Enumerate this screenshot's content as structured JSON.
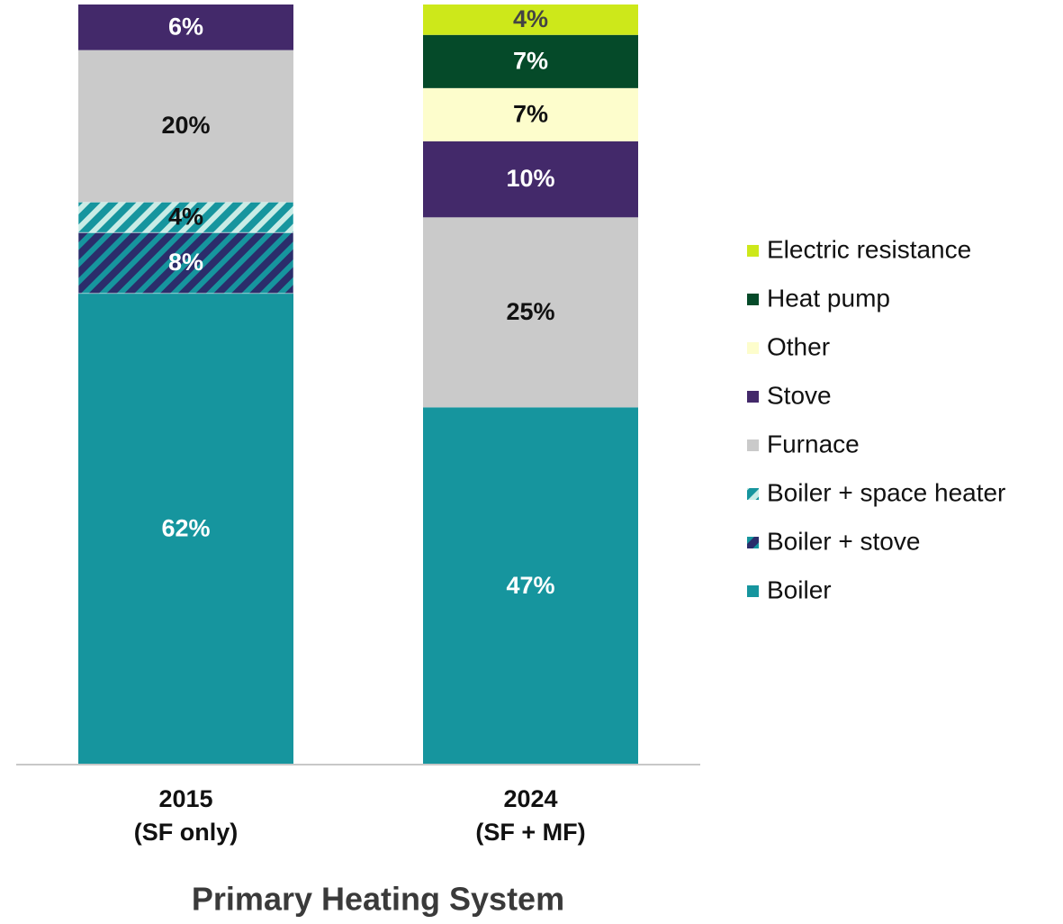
{
  "chart_data": {
    "type": "stacked_bar",
    "x_label": "Primary Heating System",
    "categories": [
      "2015\n(SF only)",
      "2024\n(SF + MF)"
    ],
    "ylim": [
      0,
      100
    ],
    "legend": "right",
    "series": [
      {
        "name": "Boiler",
        "color": "#16959e",
        "label_color": "#ffffff",
        "values": [
          62,
          47
        ],
        "value_labels": [
          "62%",
          "47%"
        ]
      },
      {
        "name": "Boiler + stove",
        "color": "#22557a",
        "hatch": [
          "#2b2d6b",
          "#16959e"
        ],
        "label_color": "#ffffff",
        "values": [
          8,
          null
        ],
        "value_labels": [
          "8%",
          null
        ]
      },
      {
        "name": "Boiler + space heater",
        "color": "#5cb8b5",
        "hatch": [
          "#16959e",
          "#c9ece6"
        ],
        "label_color": "#111111",
        "values": [
          4,
          null
        ],
        "value_labels": [
          "4%",
          null
        ]
      },
      {
        "name": "Furnace",
        "color": "#cacaca",
        "label_color": "#111111",
        "values": [
          20,
          25
        ],
        "value_labels": [
          "20%",
          "25%"
        ]
      },
      {
        "name": "Stove",
        "color": "#43296a",
        "label_color": "#ffffff",
        "values": [
          6,
          10
        ],
        "value_labels": [
          "6%",
          "10%"
        ]
      },
      {
        "name": "Other",
        "color": "#fdfdcc",
        "label_color": "#111111",
        "values": [
          null,
          7
        ],
        "value_labels": [
          null,
          "7%"
        ]
      },
      {
        "name": "Heat pump",
        "color": "#054a29",
        "label_color": "#ffffff",
        "values": [
          null,
          7
        ],
        "value_labels": [
          null,
          "7%"
        ]
      },
      {
        "name": "Electric resistance",
        "color": "#cde81a",
        "label_color": "#444444",
        "values": [
          null,
          4
        ],
        "value_labels": [
          null,
          "4%"
        ]
      }
    ]
  }
}
